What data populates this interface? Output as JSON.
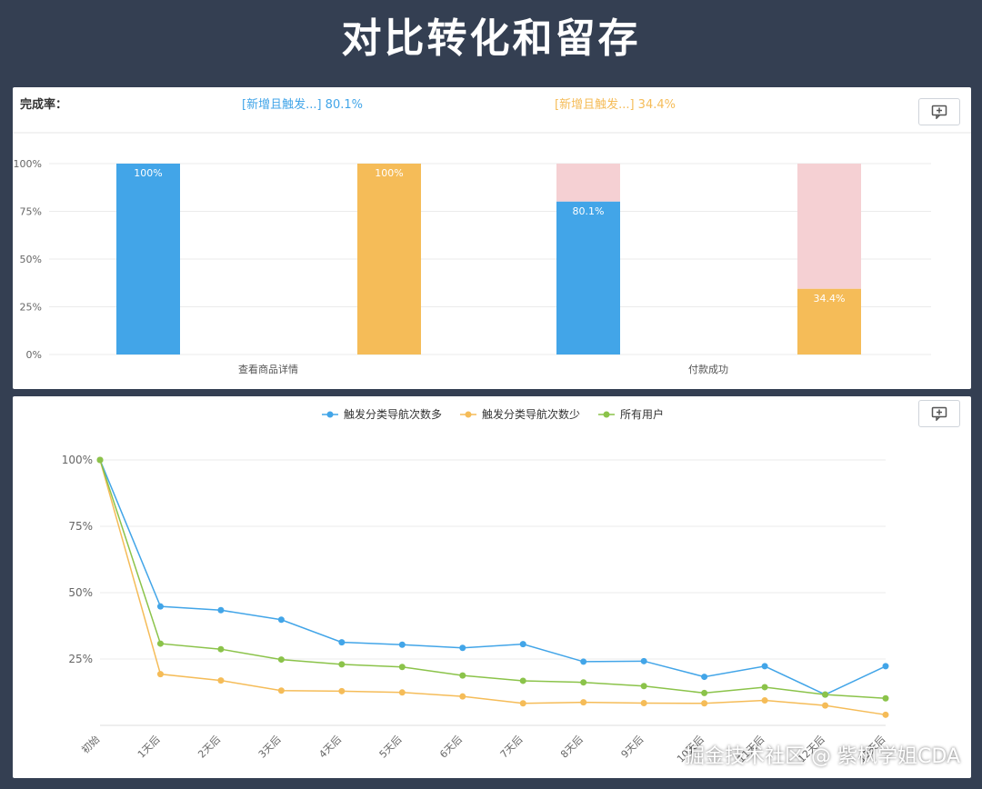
{
  "title": "对比转化和留存",
  "watermark": "掘金技术社区 @ 紫枫学姐CDA",
  "colors": {
    "blue": "#42a5e8",
    "orange": "#f5bc58",
    "green": "#8bc34a",
    "pink": "#f5d0d3",
    "grid": "#ebebeb",
    "axis_text": "#666666"
  },
  "icons": {
    "comment": "comment-icon"
  },
  "chart_data": [
    {
      "type": "bar",
      "header": {
        "label": "完成率：",
        "items": [
          {
            "text": "[新增且触发...] 80.1%",
            "color": "#42a5e8"
          },
          {
            "text": "[新增且触发...] 34.4%",
            "color": "#f5bc58"
          }
        ]
      },
      "categories": [
        "查看商品详情",
        "付款成功"
      ],
      "yticks": [
        "0%",
        "25%",
        "50%",
        "75%",
        "100%"
      ],
      "ylim": [
        0,
        100
      ],
      "series": [
        {
          "color": "#42a5e8",
          "values": [
            100,
            80.1
          ],
          "labels": [
            "100%",
            "80.1%"
          ]
        },
        {
          "color": "#f5bc58",
          "values": [
            100,
            34.4
          ],
          "labels": [
            "100%",
            "34.4%"
          ]
        }
      ],
      "remainder_color": "#f5d0d3"
    },
    {
      "type": "line",
      "x": [
        "初始",
        "1天后",
        "2天后",
        "3天后",
        "4天后",
        "5天后",
        "6天后",
        "7天后",
        "8天后",
        "9天后",
        "10天后",
        "11天后",
        "12天后",
        "13天后"
      ],
      "yticks": [
        "25%",
        "50%",
        "75%",
        "100%"
      ],
      "ylim": [
        0,
        100
      ],
      "series": [
        {
          "name": "触发分类导航次数多",
          "color": "#42a5e8",
          "values": [
            100,
            44.8,
            43.4,
            39.8,
            31.3,
            30.4,
            29.2,
            30.6,
            24.0,
            24.2,
            18.3,
            22.3,
            11.6,
            22.3
          ]
        },
        {
          "name": "触发分类导航次数少",
          "color": "#f5bc58",
          "values": [
            100,
            19.3,
            16.9,
            13.1,
            12.9,
            12.4,
            10.9,
            8.3,
            8.7,
            8.4,
            8.3,
            9.4,
            7.5,
            4.0
          ]
        },
        {
          "name": "所有用户",
          "color": "#8bc34a",
          "values": [
            100,
            30.8,
            28.7,
            24.8,
            23.0,
            22.0,
            18.8,
            16.8,
            16.2,
            14.8,
            12.2,
            14.4,
            11.6,
            10.2
          ]
        }
      ]
    }
  ]
}
